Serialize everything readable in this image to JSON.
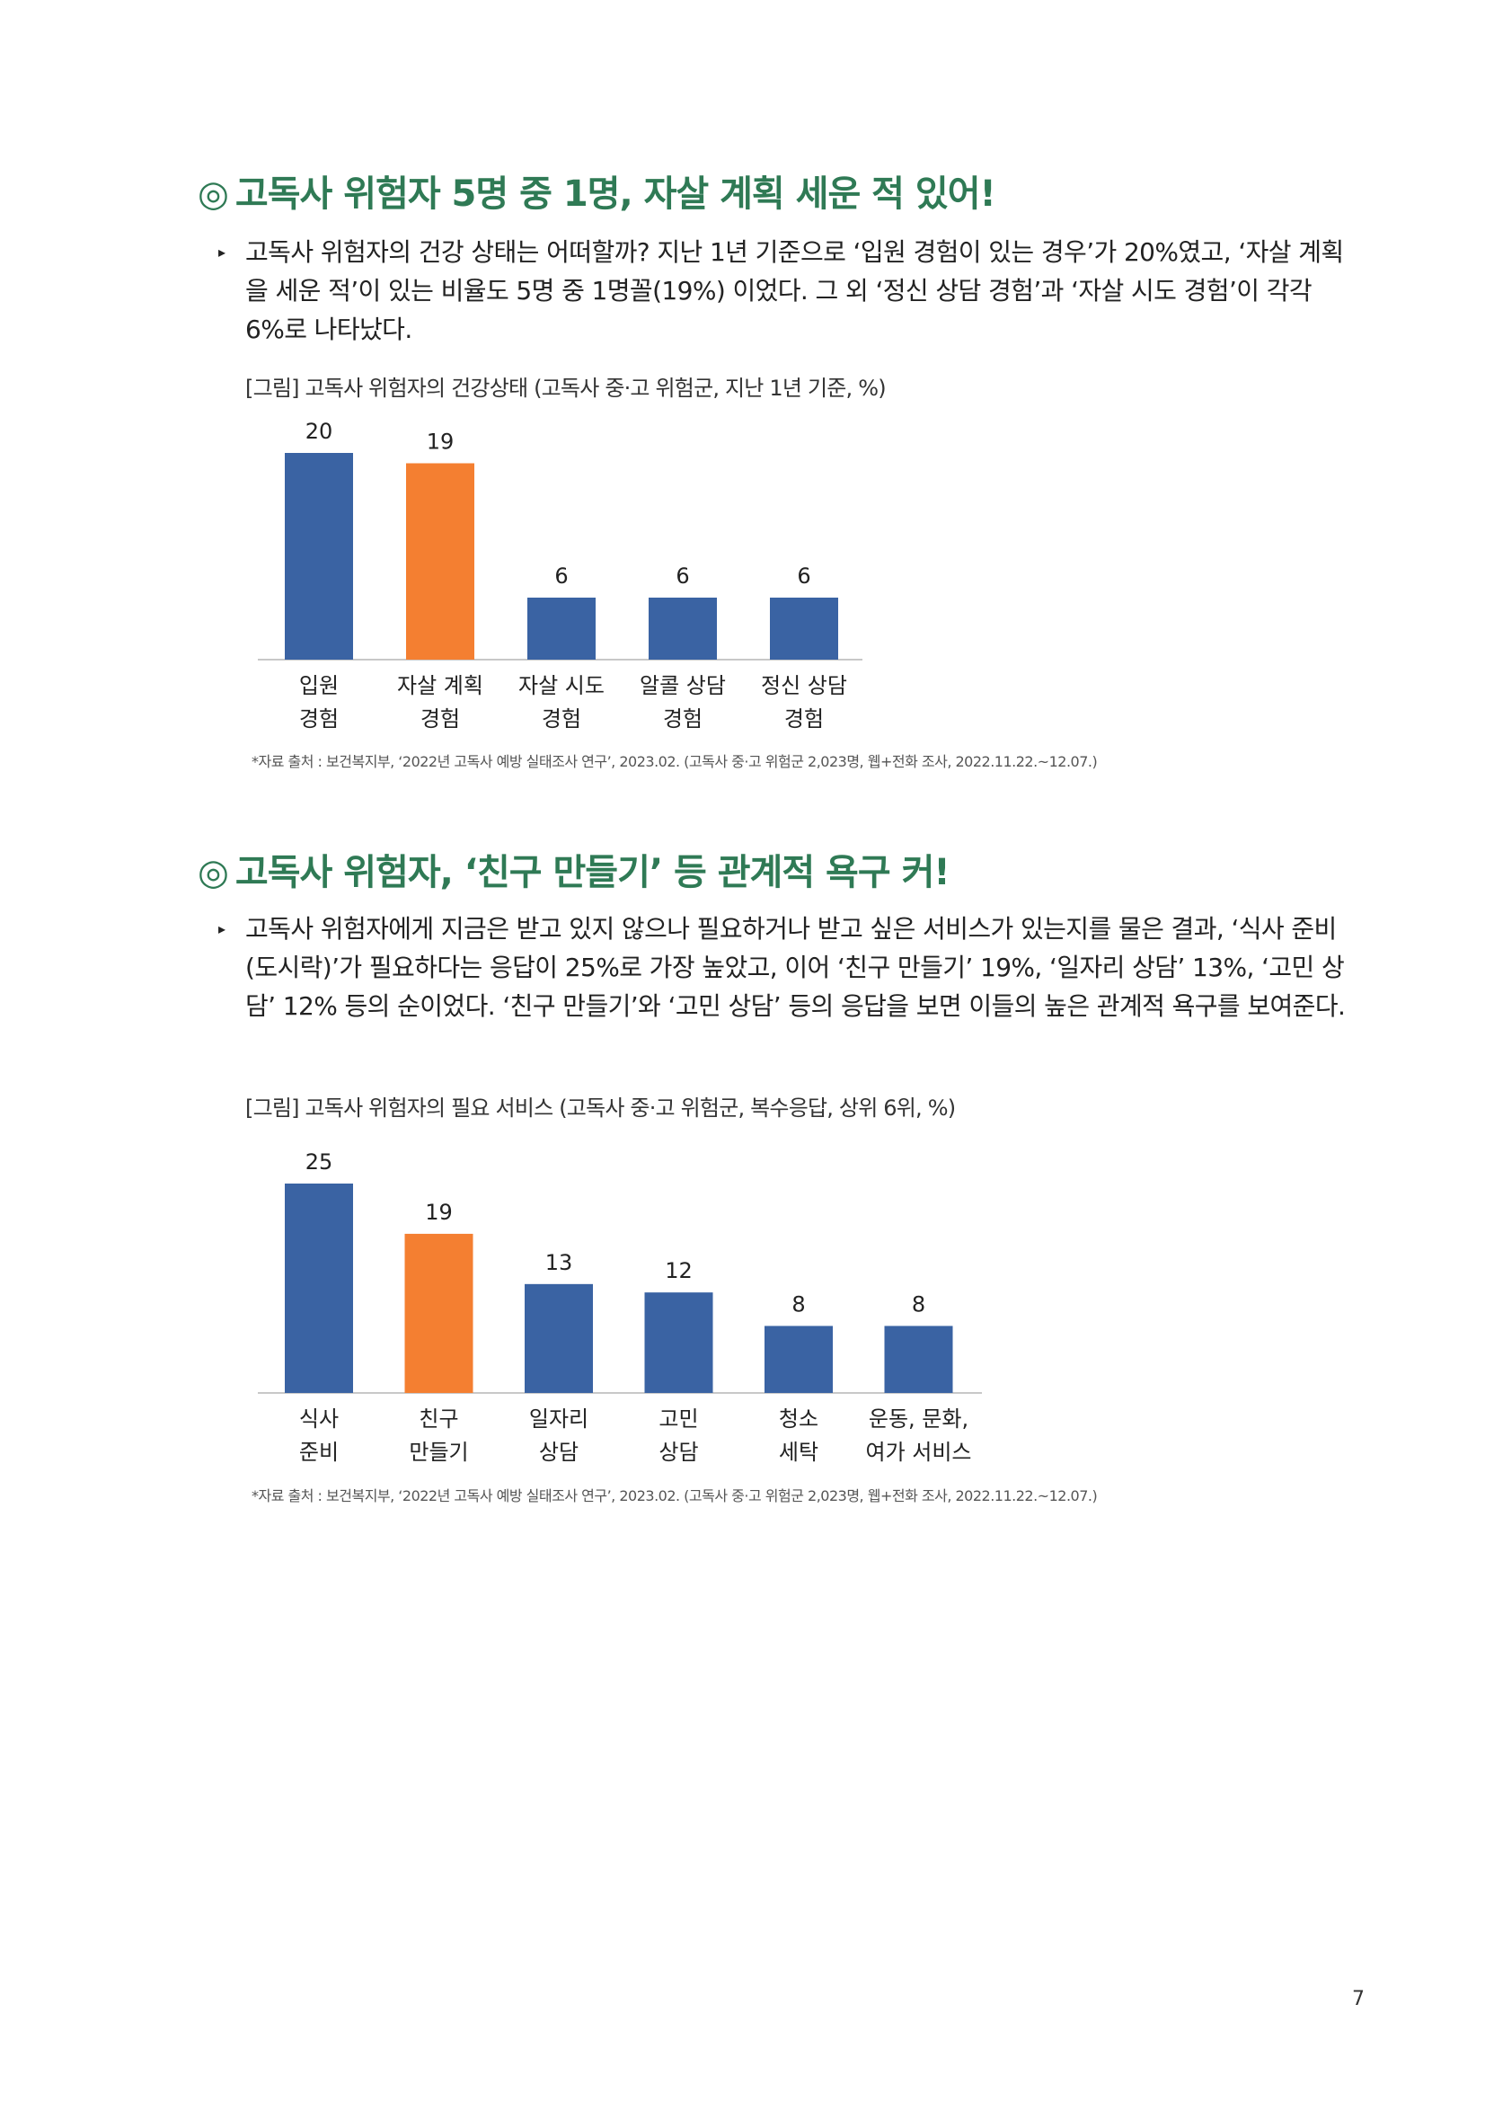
{
  "section1": {
    "mark": "◎",
    "title": "고독사 위험자 5명 중 1명, 자살 계획 세운 적 있어!",
    "paragraph": "고독사 위험자의 건강 상태는 어떠할까? 지난 1년 기준으로 ‘입원 경험이 있는 경우’가 20%였고, ‘자살 계획을 세운 적’이 있는 비율도 5명 중 1명꼴(19%) 이었다. 그 외 ‘정신 상담 경험’과 ‘자살 시도 경험’이 각각 6%로 나타났다.",
    "caption": "[그림] 고독사 위험자의 건강상태 (고독사 중·고 위험군, 지난 1년 기준, %)",
    "source": "*자료 출처 : 보건복지부, ‘2022년 고독사 예방 실태조사 연구’, 2023.02. (고독사 중·고 위험군 2,023명, 웹+전화 조사, 2022.11.22.~12.07.)"
  },
  "section2": {
    "mark": "◎",
    "title": "고독사 위험자, ‘친구 만들기’ 등 관계적 욕구 커!",
    "paragraph": "고독사 위험자에게 지금은 받고 있지 않으나 필요하거나 받고 싶은 서비스가 있는지를 물은 결과, ‘식사 준비(도시락)’가 필요하다는 응답이 25%로 가장 높았고, 이어 ‘친구 만들기’ 19%, ‘일자리 상담’ 13%, ‘고민 상담’ 12% 등의 순이었다. ‘친구 만들기’와 ‘고민 상담’ 등의 응답을 보면 이들의 높은 관계적 욕구를 보여준다.",
    "caption": "[그림] 고독사 위험자의 필요 서비스 (고독사 중·고 위험군, 복수응답, 상위 6위, %)",
    "source": "*자료 출처 : 보건복지부, ‘2022년 고독사 예방 실태조사 연구’, 2023.02. (고독사 중·고 위험군 2,023명, 웹+전화 조사, 2022.11.22.~12.07.)"
  },
  "chart_data": [
    {
      "type": "bar",
      "categories": [
        [
          "입원",
          "경험"
        ],
        [
          "자살 계획",
          "경험"
        ],
        [
          "자살 시도",
          "경험"
        ],
        [
          "알콜 상담",
          "경험"
        ],
        [
          "정신 상담",
          "경험"
        ]
      ],
      "values": [
        20,
        19,
        6,
        6,
        6
      ],
      "highlight_index": 1,
      "colors": {
        "default": "#3a63a3",
        "highlight": "#f47f31"
      },
      "title": "",
      "xlabel": "",
      "ylabel": "",
      "ylim": [
        0,
        20
      ],
      "grid": false
    },
    {
      "type": "bar",
      "categories": [
        [
          "식사",
          "준비"
        ],
        [
          "친구",
          "만들기"
        ],
        [
          "일자리",
          "상담"
        ],
        [
          "고민",
          "상담"
        ],
        [
          "청소",
          "세탁"
        ],
        [
          "운동, 문화,",
          "여가 서비스"
        ]
      ],
      "values": [
        25,
        19,
        13,
        12,
        8,
        8
      ],
      "highlight_index": 1,
      "colors": {
        "default": "#3a63a3",
        "highlight": "#f47f31"
      },
      "title": "",
      "xlabel": "",
      "ylabel": "",
      "ylim": [
        0,
        25
      ],
      "grid": false
    }
  ],
  "page_number": "7"
}
